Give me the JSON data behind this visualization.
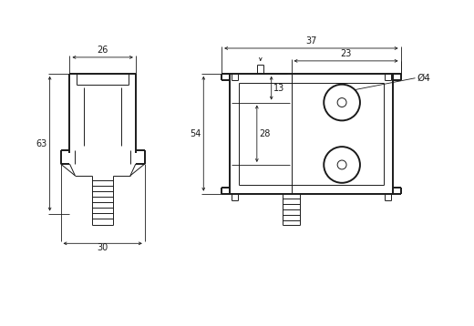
{
  "bg_color": "#ffffff",
  "line_color": "#1a1a1a",
  "dim_color": "#1a1a1a",
  "thin_lw": 0.7,
  "thick_lw": 1.4,
  "dim_lw": 0.6,
  "fig_width": 5.2,
  "fig_height": 3.58,
  "dpi": 100,
  "annotations": {
    "dim_26": "26",
    "dim_30": "30",
    "dim_63": "63",
    "dim_37": "37",
    "dim_23": "23",
    "dim_13": "13",
    "dim_28": "28",
    "dim_54": "54",
    "dim_d4": "Ø4"
  }
}
